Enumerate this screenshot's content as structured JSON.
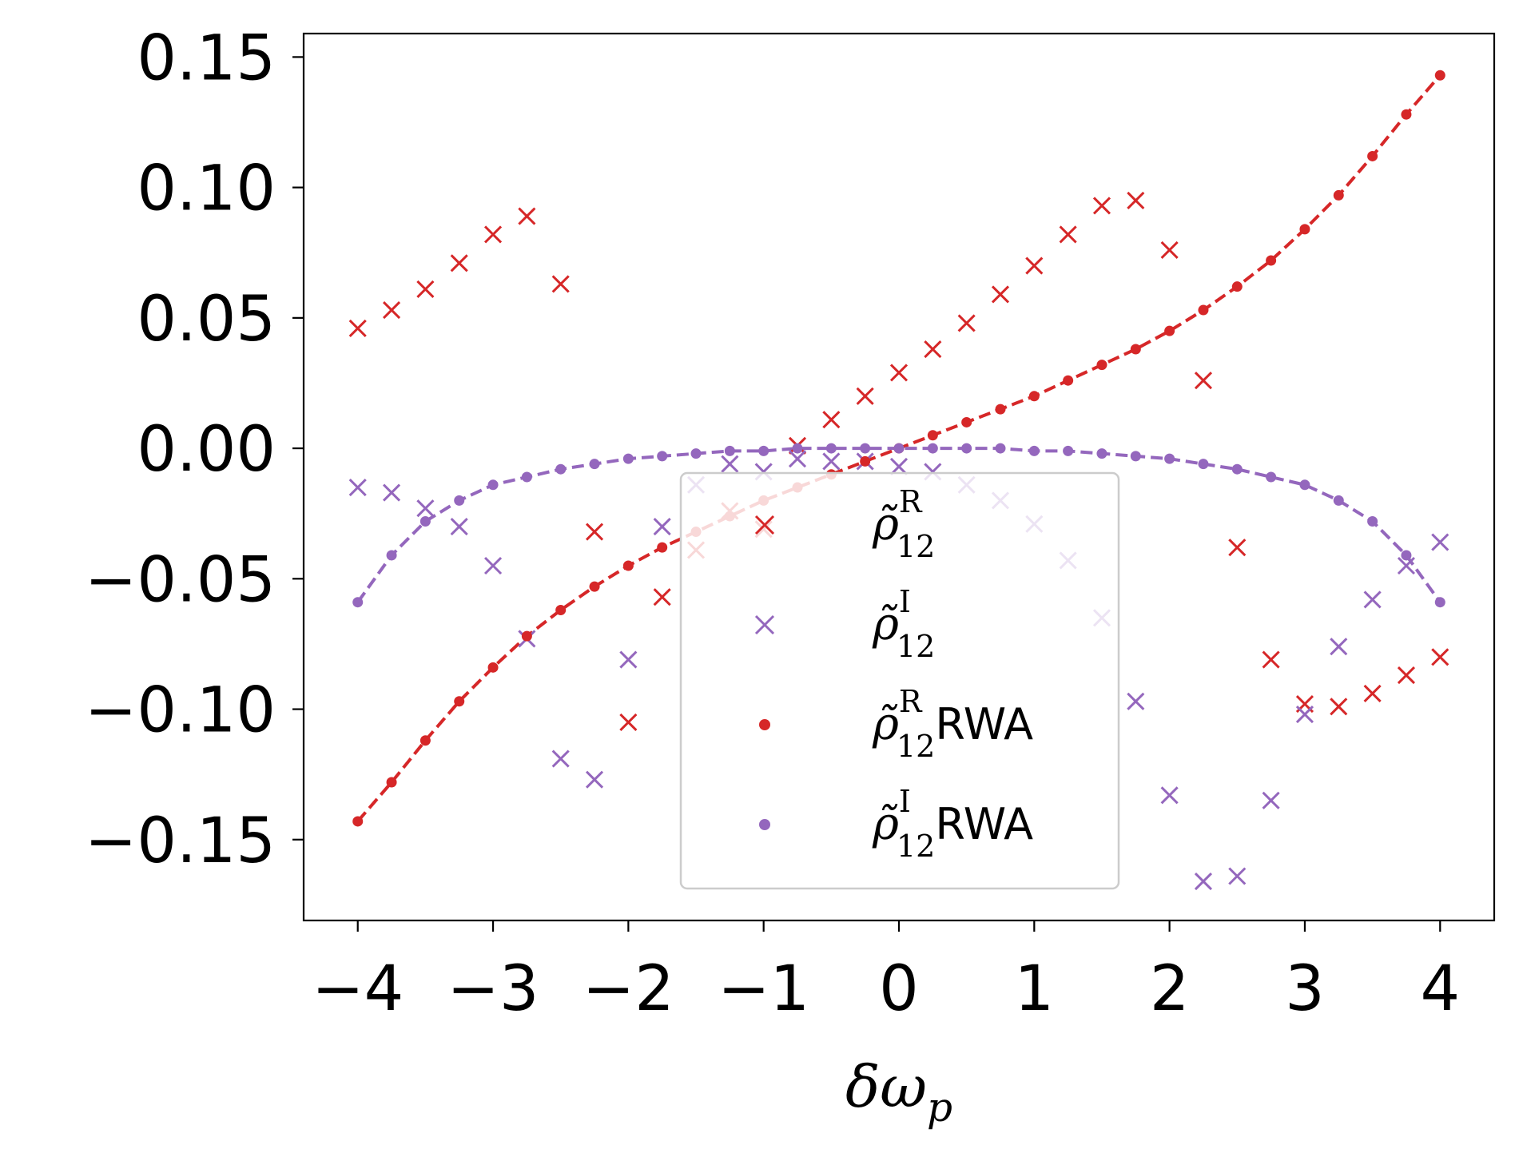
{
  "chart_data": {
    "type": "scatter",
    "title": "",
    "xlabel": "δω",
    "xlabel_sub": "p",
    "ylabel": "",
    "xlim": [
      -4.4,
      4.4
    ],
    "ylim": [
      -0.181,
      0.159
    ],
    "xticks": [
      -4,
      -3,
      -2,
      -1,
      0,
      1,
      2,
      3,
      4
    ],
    "xtick_labels": [
      "−4",
      "−3",
      "−2",
      "−1",
      "0",
      "1",
      "2",
      "3",
      "4"
    ],
    "yticks": [
      0.15,
      0.1,
      0.05,
      0.0,
      -0.05,
      -0.1,
      -0.15
    ],
    "ytick_labels": [
      "0.15",
      "0.10",
      "0.05",
      "0.00",
      "−0.05",
      "−0.10",
      "−0.15"
    ],
    "grid": false,
    "legend_position": "lower-center",
    "colors": {
      "real": "#d62728",
      "imag": "#9467bd"
    },
    "x": [
      -4,
      -3.75,
      -3.5,
      -3.25,
      -3,
      -2.75,
      -2.5,
      -2.25,
      -2,
      -1.75,
      -1.5,
      -1.25,
      -1,
      -0.75,
      -0.5,
      -0.25,
      0,
      0.25,
      0.5,
      0.75,
      1,
      1.25,
      1.5,
      1.75,
      2,
      2.25,
      2.5,
      2.75,
      3,
      3.25,
      3.5,
      3.75,
      4
    ],
    "series": [
      {
        "name": "rho_R",
        "legend_symbol": "ρ̃",
        "legend_sup": "R",
        "legend_sub": "12",
        "legend_suffix": "",
        "marker": "x",
        "color": "#d62728",
        "values": [
          0.046,
          0.053,
          0.061,
          0.071,
          0.082,
          0.089,
          0.063,
          -0.032,
          -0.105,
          -0.057,
          -0.039,
          -0.024,
          -0.031,
          0.001,
          0.011,
          0.02,
          0.029,
          0.038,
          0.048,
          0.059,
          0.07,
          0.082,
          0.093,
          0.095,
          0.076,
          0.026,
          -0.038,
          -0.081,
          -0.098,
          -0.099,
          -0.094,
          -0.087,
          -0.08
        ]
      },
      {
        "name": "rho_I",
        "legend_symbol": "ρ̃",
        "legend_sup": "I",
        "legend_sub": "12",
        "legend_suffix": "",
        "marker": "x",
        "color": "#9467bd",
        "values": [
          -0.015,
          -0.017,
          -0.023,
          -0.03,
          -0.045,
          -0.073,
          -0.119,
          -0.127,
          -0.081,
          -0.03,
          -0.014,
          -0.006,
          -0.009,
          -0.004,
          -0.005,
          -0.005,
          -0.007,
          -0.009,
          -0.014,
          -0.02,
          -0.029,
          -0.043,
          -0.065,
          -0.097,
          -0.133,
          -0.166,
          -0.164,
          -0.135,
          -0.102,
          -0.076,
          -0.058,
          -0.045,
          -0.036
        ]
      },
      {
        "name": "rho_R_RWA",
        "legend_symbol": "ρ̃",
        "legend_sup": "R",
        "legend_sub": "12",
        "legend_suffix": "RWA",
        "marker": "dot",
        "line": "dashed",
        "color": "#d62728",
        "values": [
          -0.143,
          -0.128,
          -0.112,
          -0.097,
          -0.084,
          -0.072,
          -0.062,
          -0.053,
          -0.045,
          -0.038,
          -0.032,
          -0.026,
          -0.02,
          -0.015,
          -0.01,
          -0.005,
          0.0,
          0.005,
          0.01,
          0.015,
          0.02,
          0.026,
          0.032,
          0.038,
          0.045,
          0.053,
          0.062,
          0.072,
          0.084,
          0.097,
          0.112,
          0.128,
          0.143
        ]
      },
      {
        "name": "rho_I_RWA",
        "legend_symbol": "ρ̃",
        "legend_sup": "I",
        "legend_sub": "12",
        "legend_suffix": "RWA",
        "marker": "dot",
        "line": "dashed",
        "color": "#9467bd",
        "values": [
          -0.059,
          -0.041,
          -0.028,
          -0.02,
          -0.014,
          -0.011,
          -0.008,
          -0.006,
          -0.004,
          -0.003,
          -0.002,
          -0.001,
          -0.001,
          0.0,
          0.0,
          0.0,
          0.0,
          0.0,
          0.0,
          0.0,
          -0.001,
          -0.001,
          -0.002,
          -0.003,
          -0.004,
          -0.006,
          -0.008,
          -0.011,
          -0.014,
          -0.02,
          -0.028,
          -0.041,
          -0.059
        ]
      }
    ]
  }
}
